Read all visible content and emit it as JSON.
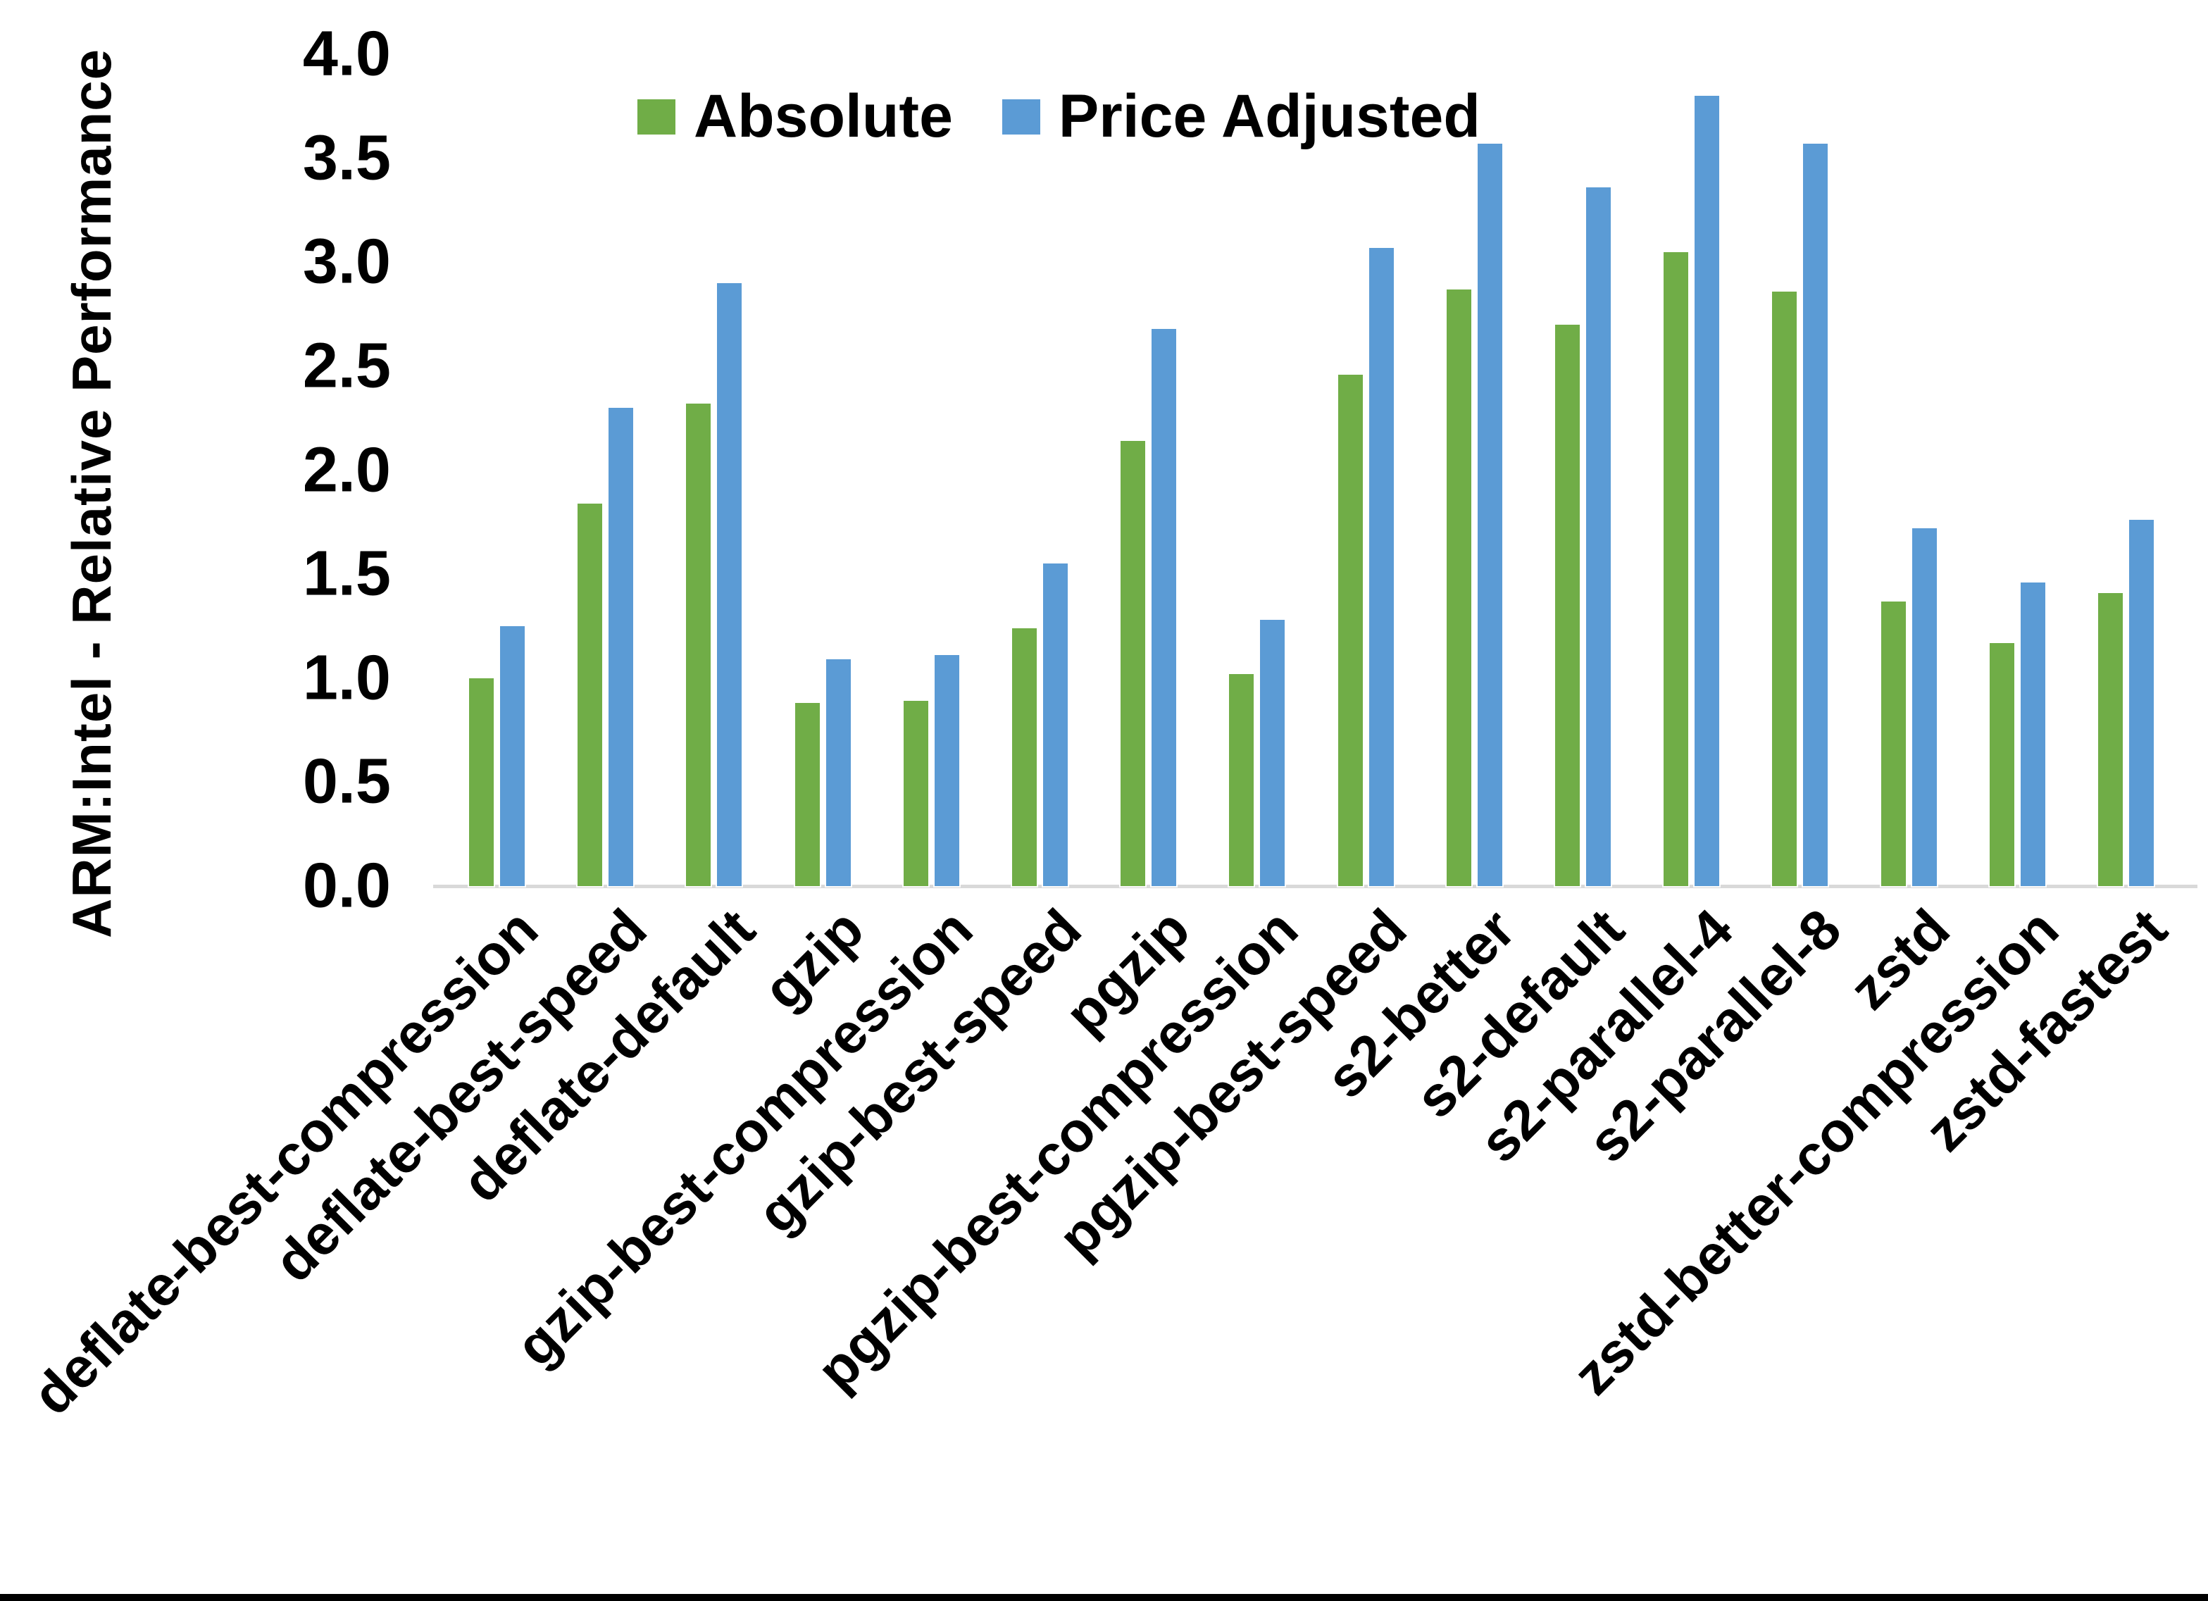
{
  "figure": {
    "y_axis_title": "ARM:Intel - Relative Performance",
    "background_color": "#ffffff",
    "axis_line_color": "#d9d9d9",
    "bottom_border_color": "#000000"
  },
  "legend": {
    "items": [
      {
        "label": "Absolute",
        "color": "#70AD47"
      },
      {
        "label": "Price Adjusted",
        "color": "#5B9BD5"
      }
    ]
  },
  "chart_data": {
    "type": "bar",
    "title": "",
    "xlabel": "",
    "ylabel": "ARM:Intel - Relative Performance",
    "ylim": [
      0,
      4
    ],
    "yticks": [
      4.0,
      3.5,
      3.0,
      2.5,
      2.0,
      1.5,
      1.0,
      0.5,
      0.0
    ],
    "grid": false,
    "legend_position": "top-center",
    "categories": [
      "deflate-best-compression",
      "deflate-best-speed",
      "deflate-default",
      "gzip",
      "gzip-best-compression",
      "gzip-best-speed",
      "pgzip",
      "pgzip-best-compression",
      "pgzip-best-speed",
      "s2-better",
      "s2-default",
      "s2-parallel-4",
      "s2-parallel-8",
      "zstd",
      "zstd-better-compression",
      "zstd-fastest"
    ],
    "series": [
      {
        "name": "Absolute",
        "color": "#70AD47",
        "values": [
          1.0,
          1.84,
          2.32,
          0.88,
          0.89,
          1.24,
          2.14,
          1.02,
          2.46,
          2.87,
          2.7,
          3.05,
          2.86,
          1.37,
          1.17,
          1.41
        ]
      },
      {
        "name": "Price Adjusted",
        "color": "#5B9BD5",
        "values": [
          1.25,
          2.3,
          2.9,
          1.09,
          1.11,
          1.55,
          2.68,
          1.28,
          3.07,
          3.57,
          3.36,
          3.8,
          3.57,
          1.72,
          1.46,
          1.76
        ]
      }
    ]
  }
}
